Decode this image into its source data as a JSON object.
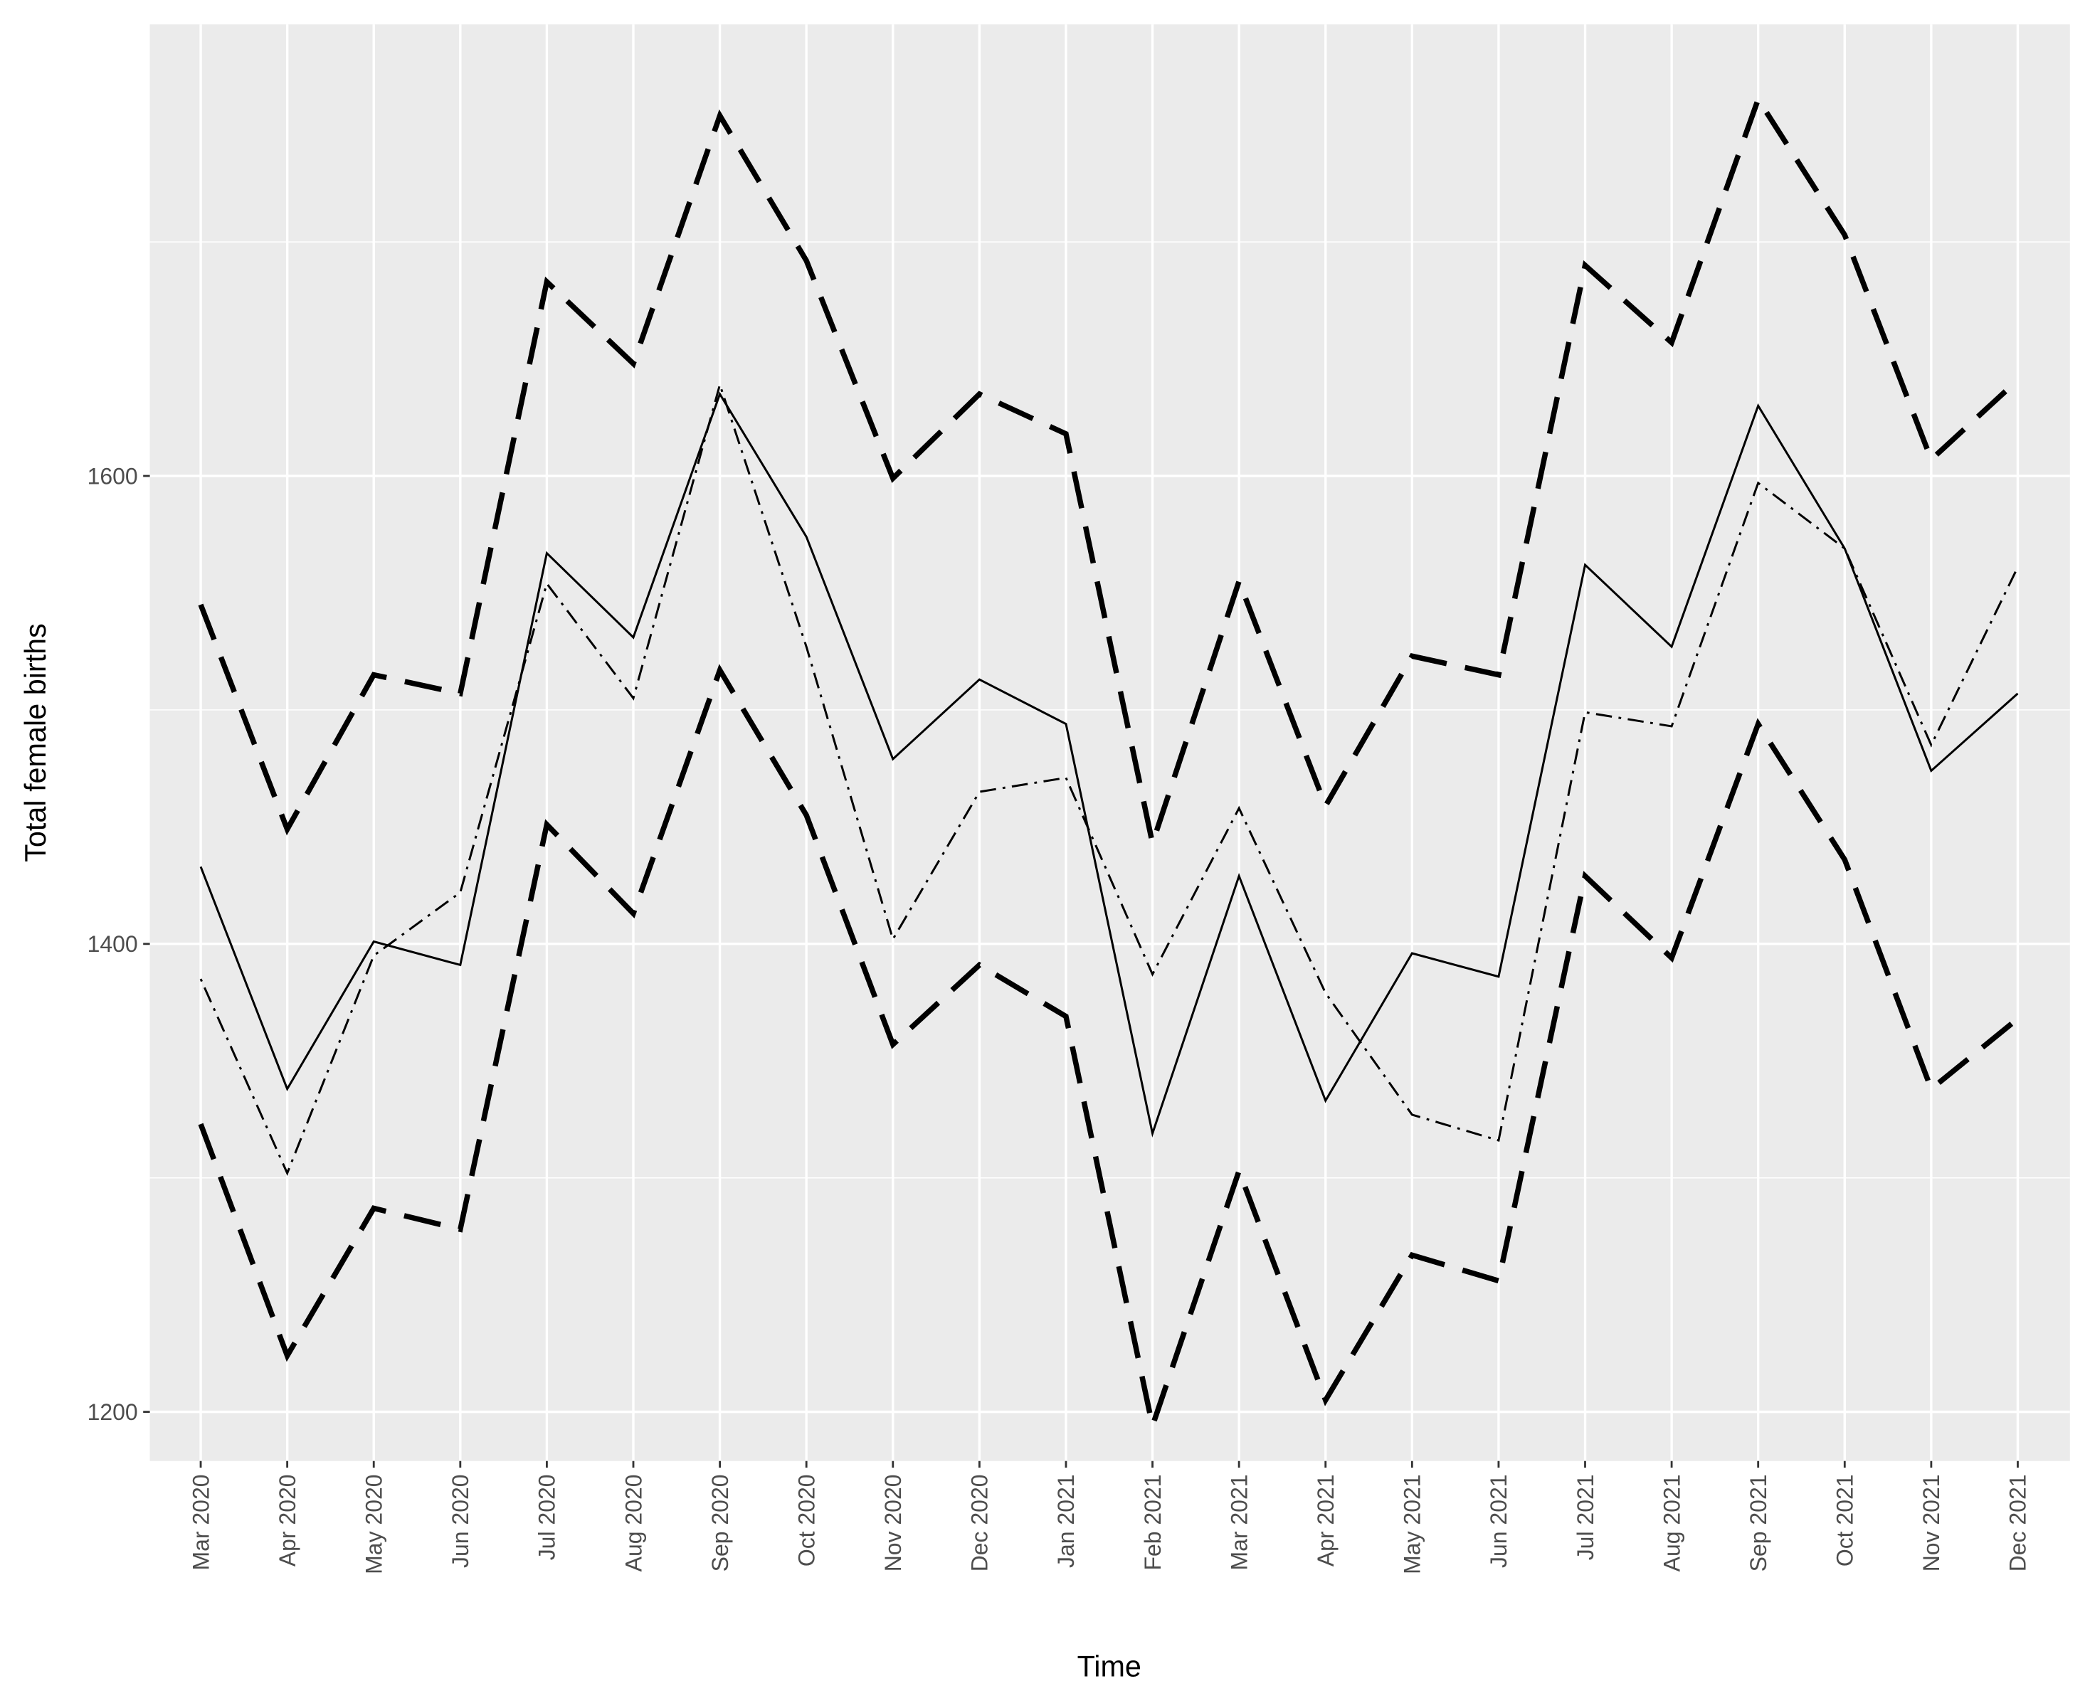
{
  "chart_data": {
    "type": "line",
    "x_label": "Time",
    "y_label": "Total female births",
    "categories": [
      "Mar 2020",
      "Apr 2020",
      "May 2020",
      "Jun 2020",
      "Jul 2020",
      "Aug 2020",
      "Sep 2020",
      "Oct 2020",
      "Nov 2020",
      "Dec 2020",
      "Jan 2021",
      "Feb 2021",
      "Mar 2021",
      "Apr 2021",
      "May 2021",
      "Jun 2021",
      "Jul 2021",
      "Aug 2021",
      "Sep 2021",
      "Oct 2021",
      "Nov 2021",
      "Dec 2021"
    ],
    "series": [
      {
        "color": "#000000",
        "dash": "long-dash",
        "width": 4,
        "values": [
          1545,
          1449,
          1515,
          1507,
          1683,
          1648,
          1754,
          1692,
          1599,
          1635,
          1618,
          1443,
          1555,
          1459,
          1523,
          1515,
          1690,
          1657,
          1761,
          1703,
          1607,
          1641
        ]
      },
      {
        "color": "#000000",
        "dash": "long-dash",
        "width": 4,
        "values": [
          1323,
          1224,
          1287,
          1278,
          1451,
          1413,
          1517,
          1455,
          1357,
          1391,
          1369,
          1194,
          1303,
          1205,
          1267,
          1256,
          1429,
          1394,
          1494,
          1436,
          1338,
          1368
        ]
      },
      {
        "color": "#000000",
        "dash": "solid",
        "width": 1.6,
        "values": [
          1433,
          1338,
          1401,
          1391,
          1567,
          1531,
          1635,
          1574,
          1479,
          1513,
          1494,
          1319,
          1429,
          1333,
          1396,
          1386,
          1562,
          1527,
          1630,
          1569,
          1474,
          1507
        ]
      },
      {
        "color": "#000000",
        "dash": "dot-dash",
        "width": 1.6,
        "values": [
          1385,
          1302,
          1395,
          1422,
          1554,
          1505,
          1639,
          1527,
          1402,
          1465,
          1471,
          1387,
          1458,
          1379,
          1327,
          1316,
          1499,
          1493,
          1597,
          1569,
          1485,
          1561
        ]
      }
    ],
    "ylim": [
      1179,
      1793
    ],
    "yticks": [
      1200,
      1400,
      1600
    ],
    "y_minor_grid": [
      1300,
      1500,
      1700
    ],
    "grid": true,
    "background": "#ebebeb"
  }
}
